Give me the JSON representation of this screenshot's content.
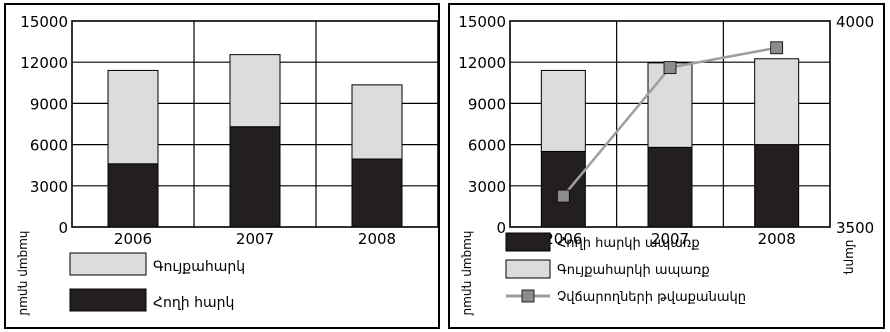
{
  "colors": {
    "land_tax": "#231f20",
    "property_tax": "#dcdcdc",
    "defaulters_line": "#9e9e9e",
    "defaulters_marker": "#8c8c8c"
  },
  "chart_data": [
    {
      "type": "bar",
      "stacked": true,
      "categories": [
        "2006",
        "2007",
        "2008"
      ],
      "series": [
        {
          "name": "Հողի հարկ",
          "values": [
            4600,
            7300,
            4950
          ]
        },
        {
          "name": "Գույքահարկ",
          "values": [
            6800,
            5250,
            5400
          ]
        }
      ],
      "ylabel": "հազար դրամ",
      "ylim": [
        0,
        15000
      ],
      "yticks": [
        "15000",
        "12000",
        "9000",
        "6000",
        "3000",
        "0"
      ],
      "grid": true,
      "legend_position": "bottom"
    },
    {
      "type": "bar",
      "stacked": true,
      "categories": [
        "2006",
        "2007",
        "2008"
      ],
      "series": [
        {
          "name": "Հողի հարկի ապառք",
          "values": [
            5500,
            5800,
            6000
          ]
        },
        {
          "name": "Գույքահարկի ապառք",
          "values": [
            5900,
            6150,
            6250
          ]
        }
      ],
      "line_series": {
        "name": "Չվճարողների թվաքանակը",
        "axis": "right",
        "values": [
          3575,
          3887,
          3935
        ]
      },
      "ylabel": "հազար դրամ",
      "y2label": "մարդ",
      "ylim": [
        0,
        15000
      ],
      "y2lim": [
        3500,
        4000
      ],
      "yticks": [
        "15000",
        "12000",
        "9000",
        "6000",
        "3000",
        "0"
      ],
      "y2ticks": [
        "4000",
        "3500"
      ],
      "grid": true,
      "legend_position": "bottom"
    }
  ]
}
